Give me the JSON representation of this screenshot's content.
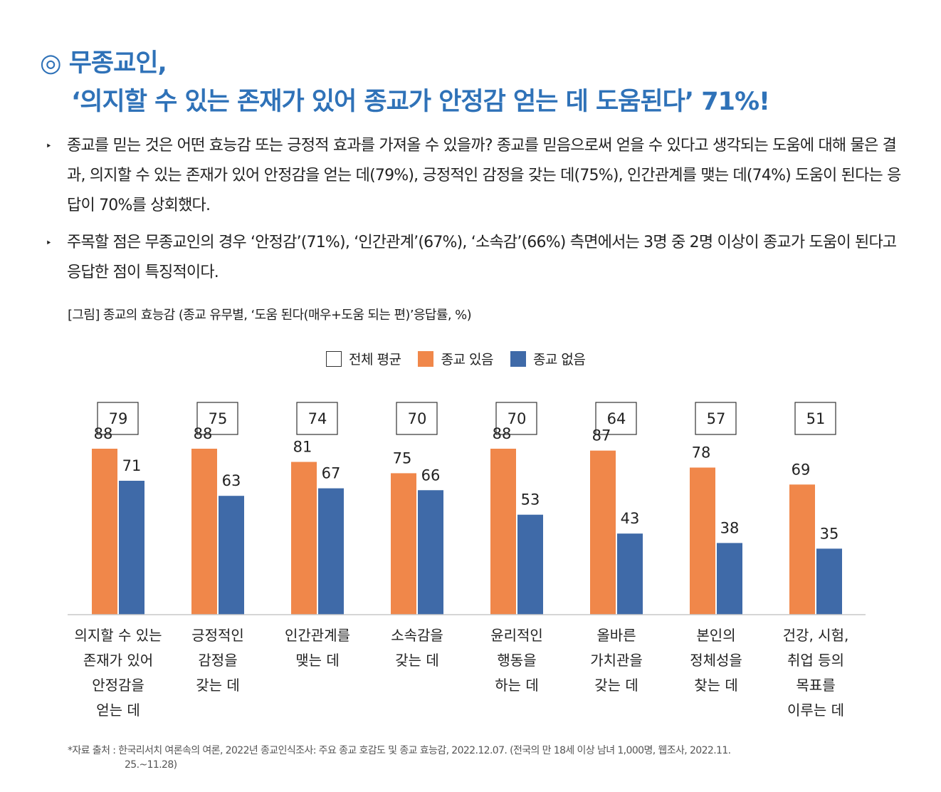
{
  "title": {
    "line1": "◎ 무종교인,",
    "line2": "‘의지할 수 있는 존재가 있어 종교가 안정감 얻는 데 도움된다’ 71%!"
  },
  "bullets": [
    {
      "marker": "‣",
      "text": "종교를 믿는 것은 어떤 효능감 또는 긍정적 효과를 가져올 수 있을까? 종교를 믿음으로써 얻을 수 있다고 생각되는 도움에 대해 물은 결과, 의지할 수 있는 존재가 있어 안정감을 얻는 데(79%), 긍정적인 감정을 갖는 데(75%), 인간관계를 맺는 데(74%) 도움이 된다는 응답이 70%를 상회했다."
    },
    {
      "marker": "‣",
      "text": "주목할 점은 무종교인의 경우 ‘안정감’(71%), ‘인간관계’(67%), ‘소속감’(66%) 측면에서는 3명 중 2명 이상이 종교가 도움이 된다고 응답한 점이 특징적이다."
    }
  ],
  "caption": "[그림] 종교의 효능감 (종교 유무별, ‘도움 된다(매우+도움 되는 편)’응답률, %)",
  "legend": [
    {
      "label": "전체 평균",
      "color": "#ffffff"
    },
    {
      "label": "종교 있음",
      "color": "#f0874a"
    },
    {
      "label": "종교 없음",
      "color": "#3f6aa8"
    }
  ],
  "chart_data": {
    "type": "bar",
    "categories": [
      [
        "의지할 수 있는",
        "존재가 있어",
        "안정감을",
        "얻는 데"
      ],
      [
        "긍정적인",
        "감정을",
        "갖는 데"
      ],
      [
        "인간관계를",
        "맺는 데"
      ],
      [
        "소속감을",
        "갖는 데"
      ],
      [
        "윤리적인",
        "행동을",
        "하는 데"
      ],
      [
        "올바른",
        "가치관을",
        "갖는 데"
      ],
      [
        "본인의",
        "정체성을",
        "찾는 데"
      ],
      [
        "건강, 시험,",
        "취업 등의",
        "목표를",
        "이루는 데"
      ]
    ],
    "series": [
      {
        "name": "전체 평균",
        "values": [
          79,
          75,
          74,
          70,
          70,
          64,
          57,
          51
        ]
      },
      {
        "name": "종교 있음",
        "values": [
          88,
          88,
          81,
          75,
          88,
          87,
          78,
          69
        ]
      },
      {
        "name": "종교 없음",
        "values": [
          71,
          63,
          67,
          66,
          53,
          43,
          38,
          35
        ]
      }
    ],
    "ylim": [
      0,
      100
    ],
    "title": "",
    "xlabel": "",
    "ylabel": ""
  },
  "footer": {
    "line1": "*자료 출처 : 한국리서치 여론속의 여론, 2022년 종교인식조사: 주요 종교 호감도 및 종교 효능감, 2022.12.07. (전국의 만 18세 이상 남녀 1,000명, 웹조사, 2022.11.",
    "line2": "25.~11.28)"
  }
}
